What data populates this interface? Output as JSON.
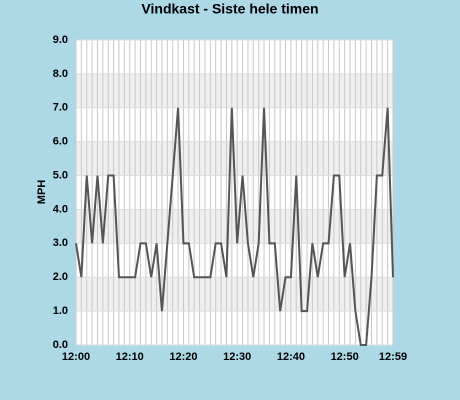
{
  "chart_data": {
    "type": "line",
    "title": "Vindkast - Siste hele timen",
    "y_label": "MPH",
    "categories": [
      "12:00",
      null,
      null,
      null,
      null,
      null,
      null,
      null,
      null,
      null,
      "12:10",
      null,
      null,
      null,
      null,
      null,
      null,
      null,
      null,
      null,
      "12:20",
      null,
      null,
      null,
      null,
      null,
      null,
      null,
      null,
      null,
      "12:30",
      null,
      null,
      null,
      null,
      null,
      null,
      null,
      null,
      null,
      "12:40",
      null,
      null,
      null,
      null,
      null,
      null,
      null,
      null,
      null,
      "12:50",
      null,
      null,
      null,
      null,
      null,
      null,
      null,
      null,
      "12:59"
    ],
    "values": [
      3,
      2,
      5,
      3,
      5,
      3,
      5,
      5,
      2,
      2,
      2,
      2,
      3,
      3,
      2,
      3,
      1,
      3,
      5,
      7,
      3,
      3,
      2,
      2,
      2,
      2,
      3,
      3,
      2,
      7,
      3,
      5,
      3,
      2,
      3,
      7,
      3,
      3,
      1,
      2,
      2,
      5,
      1,
      1,
      3,
      2,
      3,
      3,
      5,
      5,
      2,
      3,
      1,
      0,
      0,
      2,
      5,
      5,
      7,
      2
    ],
    "color": "#555555",
    "ylim": [
      0,
      9
    ],
    "yticks": [
      {
        "value": 0,
        "label": "0.0"
      },
      {
        "value": 1,
        "label": "1.0"
      },
      {
        "value": 2,
        "label": "2.0"
      },
      {
        "value": 3,
        "label": "3.0"
      },
      {
        "value": 4,
        "label": "4.0"
      },
      {
        "value": 5,
        "label": "5.0"
      },
      {
        "value": 6,
        "label": "6.0"
      },
      {
        "value": 7,
        "label": "7.0"
      },
      {
        "value": 8,
        "label": "8.0"
      },
      {
        "value": 9,
        "label": "9.0"
      }
    ],
    "grid": true
  }
}
